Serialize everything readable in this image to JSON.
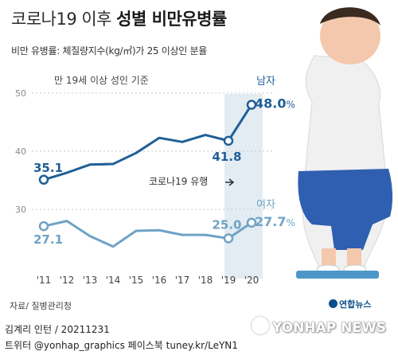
{
  "title_light": "코로나19 이후 ",
  "title_bold": "성별 비만유병률",
  "subtitle": "비만 유병률: 체질량지수(kg/㎡)가 25 이상인 분율",
  "source": "자료/ 질병관리청",
  "credit_line1": "김계리 인턴 / 20211231",
  "credit_line2": "트위터 @yonhap_graphics  페이스북 tuney.kr/LeYN1",
  "logo_text": "연합뉴스",
  "watermark": "YONHAP NEWS",
  "colors": {
    "male": "#1f5f97",
    "female": "#6fa3c6",
    "highlight": "#e3ecf3",
    "grid": "#c9c9c9",
    "axis_text": "#8a8a8a"
  },
  "chart_data": {
    "type": "line",
    "annotation_age": "만 19세 이상 성인 기준",
    "annotation_covid": "코로나19 유행",
    "x": [
      "'11",
      "'12",
      "'13",
      "'14",
      "'15",
      "'16",
      "'17",
      "'18",
      "'19",
      "'20"
    ],
    "ylim": [
      25,
      50
    ],
    "yticks": [
      "30",
      "40",
      "50"
    ],
    "series": [
      {
        "name": "남자",
        "values": [
          35.1,
          36.3,
          37.7,
          37.8,
          39.7,
          42.3,
          41.6,
          42.8,
          41.8,
          48.0
        ],
        "labels": [
          {
            "index": 0,
            "text": "35.1"
          },
          {
            "index": 8,
            "text": "41.8"
          },
          {
            "index": 9,
            "text": "48.0",
            "unit": "%"
          }
        ]
      },
      {
        "name": "여자",
        "values": [
          27.1,
          28.0,
          25.4,
          23.6,
          26.3,
          26.4,
          25.6,
          25.6,
          25.0,
          27.7
        ],
        "labels": [
          {
            "index": 0,
            "text": "27.1"
          },
          {
            "index": 8,
            "text": "25.0"
          },
          {
            "index": 9,
            "text": "27.7",
            "unit": "%"
          }
        ]
      }
    ]
  }
}
